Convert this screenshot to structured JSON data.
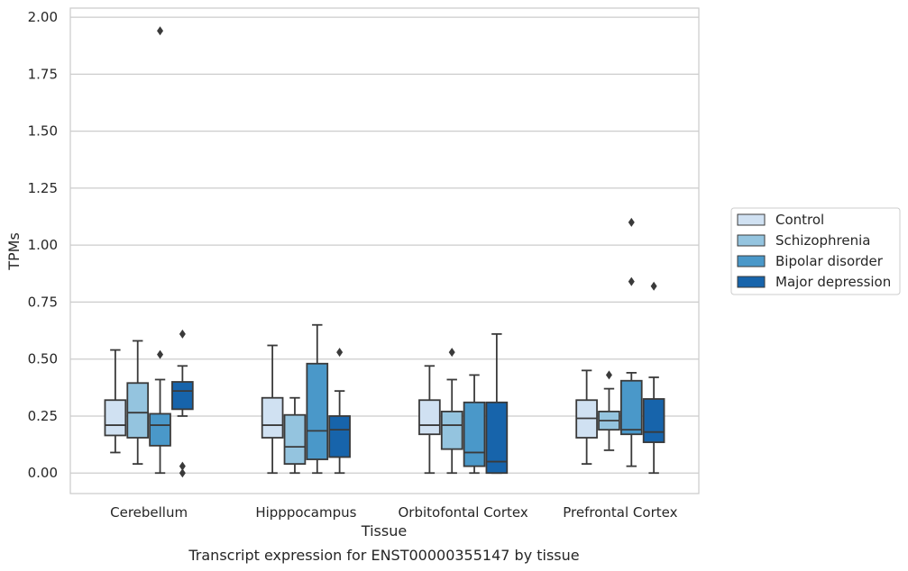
{
  "chart_data": {
    "type": "box",
    "caption": "Transcript expression for ENST00000355147 by tissue",
    "xlabel": "Tissue",
    "ylabel": "TPMs",
    "ylim": [
      -0.09,
      2.04
    ],
    "yticks": [
      0.0,
      0.25,
      0.5,
      0.75,
      1.0,
      1.25,
      1.5,
      1.75,
      2.0
    ],
    "ytick_labels": [
      "0.00",
      "0.25",
      "0.50",
      "0.75",
      "1.00",
      "1.25",
      "1.50",
      "1.75",
      "2.00"
    ],
    "grid": true,
    "legend_position": "right",
    "categories": [
      "Cerebellum",
      "Hipppocampus",
      "Orbitofontal Cortex",
      "Prefrontal Cortex"
    ],
    "series": [
      {
        "name": "Control",
        "color": "#d0e1f2",
        "boxes": [
          {
            "whisker_low": 0.09,
            "q1": 0.165,
            "median": 0.21,
            "q3": 0.32,
            "whisker_high": 0.54,
            "outliers": []
          },
          {
            "whisker_low": 0.0,
            "q1": 0.155,
            "median": 0.21,
            "q3": 0.33,
            "whisker_high": 0.56,
            "outliers": []
          },
          {
            "whisker_low": 0.0,
            "q1": 0.17,
            "median": 0.21,
            "q3": 0.32,
            "whisker_high": 0.47,
            "outliers": []
          },
          {
            "whisker_low": 0.04,
            "q1": 0.155,
            "median": 0.24,
            "q3": 0.32,
            "whisker_high": 0.45,
            "outliers": []
          }
        ]
      },
      {
        "name": "Schizophrenia",
        "color": "#94c4df",
        "boxes": [
          {
            "whisker_low": 0.04,
            "q1": 0.155,
            "median": 0.265,
            "q3": 0.395,
            "whisker_high": 0.58,
            "outliers": []
          },
          {
            "whisker_low": 0.0,
            "q1": 0.04,
            "median": 0.115,
            "q3": 0.255,
            "whisker_high": 0.33,
            "outliers": []
          },
          {
            "whisker_low": 0.0,
            "q1": 0.105,
            "median": 0.21,
            "q3": 0.27,
            "whisker_high": 0.41,
            "outliers": [
              0.53
            ]
          },
          {
            "whisker_low": 0.1,
            "q1": 0.19,
            "median": 0.23,
            "q3": 0.27,
            "whisker_high": 0.37,
            "outliers": [
              0.43
            ]
          }
        ]
      },
      {
        "name": "Bipolar disorder",
        "color": "#4a98c9",
        "boxes": [
          {
            "whisker_low": 0.0,
            "q1": 0.12,
            "median": 0.21,
            "q3": 0.26,
            "whisker_high": 0.41,
            "outliers": [
              0.52,
              1.94
            ]
          },
          {
            "whisker_low": 0.0,
            "q1": 0.06,
            "median": 0.185,
            "q3": 0.48,
            "whisker_high": 0.65,
            "outliers": []
          },
          {
            "whisker_low": 0.0,
            "q1": 0.03,
            "median": 0.09,
            "q3": 0.31,
            "whisker_high": 0.43,
            "outliers": []
          },
          {
            "whisker_low": 0.03,
            "q1": 0.17,
            "median": 0.19,
            "q3": 0.405,
            "whisker_high": 0.44,
            "outliers": [
              0.84,
              1.1
            ]
          }
        ]
      },
      {
        "name": "Major depression",
        "color": "#1764ab",
        "boxes": [
          {
            "whisker_low": 0.25,
            "q1": 0.28,
            "median": 0.36,
            "q3": 0.4,
            "whisker_high": 0.47,
            "outliers": [
              0.61,
              0.03,
              0.0
            ]
          },
          {
            "whisker_low": 0.0,
            "q1": 0.07,
            "median": 0.19,
            "q3": 0.25,
            "whisker_high": 0.36,
            "outliers": [
              0.53
            ]
          },
          {
            "whisker_low": 0.0,
            "q1": 0.0,
            "median": 0.05,
            "q3": 0.31,
            "whisker_high": 0.61,
            "outliers": []
          },
          {
            "whisker_low": 0.0,
            "q1": 0.135,
            "median": 0.18,
            "q3": 0.325,
            "whisker_high": 0.42,
            "outliers": [
              0.82
            ]
          }
        ]
      }
    ]
  }
}
